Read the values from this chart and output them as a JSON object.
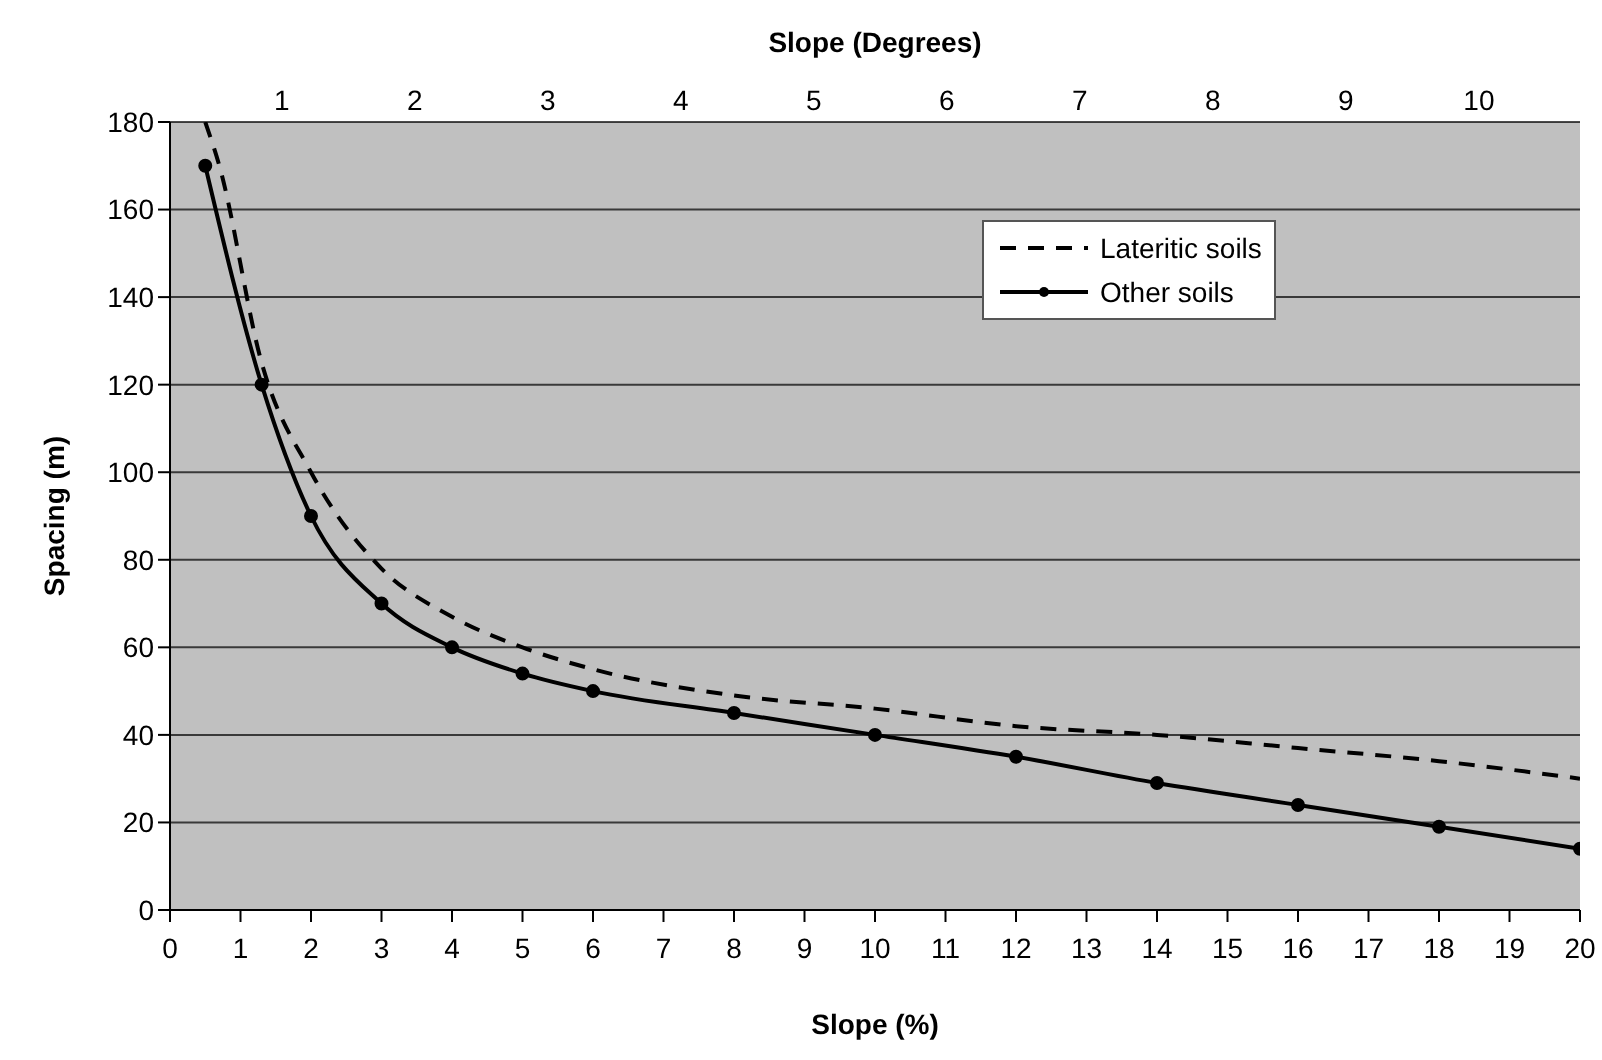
{
  "chart_data": {
    "type": "line",
    "xlabel": "Slope (%)",
    "x2label": "Slope (Degrees)",
    "ylabel": "Spacing (m)",
    "xlim": [
      0,
      20
    ],
    "xticks": [
      0,
      1,
      2,
      3,
      4,
      5,
      6,
      7,
      8,
      9,
      10,
      11,
      12,
      13,
      14,
      15,
      16,
      17,
      18,
      19,
      20
    ],
    "x2lim": [
      0.16,
      10.76
    ],
    "x2ticks": [
      1,
      2,
      3,
      4,
      5,
      6,
      7,
      8,
      9,
      10
    ],
    "ylim": [
      0,
      180
    ],
    "yticks": [
      0,
      20,
      40,
      60,
      80,
      100,
      120,
      140,
      160,
      180
    ],
    "grid": "y",
    "legend": "top right",
    "series": [
      {
        "name": "Lateritic soils",
        "color": "#000000",
        "line_style": "dashed",
        "marker": "none",
        "x": [
          0.5,
          0.7,
          1.3,
          2,
          3,
          4,
          5,
          6,
          8,
          10,
          12,
          14,
          16,
          18,
          20
        ],
        "values": [
          180,
          170,
          125,
          100,
          78,
          67,
          60,
          55,
          49,
          46,
          42,
          40,
          37,
          34,
          30
        ]
      },
      {
        "name": "Other soils",
        "color": "#000000",
        "line_style": "solid",
        "marker": "circle",
        "x": [
          0.5,
          1.3,
          2,
          3,
          4,
          5,
          6,
          8,
          10,
          12,
          14,
          16,
          18,
          20
        ],
        "values": [
          170,
          120,
          90,
          70,
          60,
          54,
          50,
          45,
          40,
          35,
          29,
          24,
          19,
          14
        ]
      }
    ]
  }
}
